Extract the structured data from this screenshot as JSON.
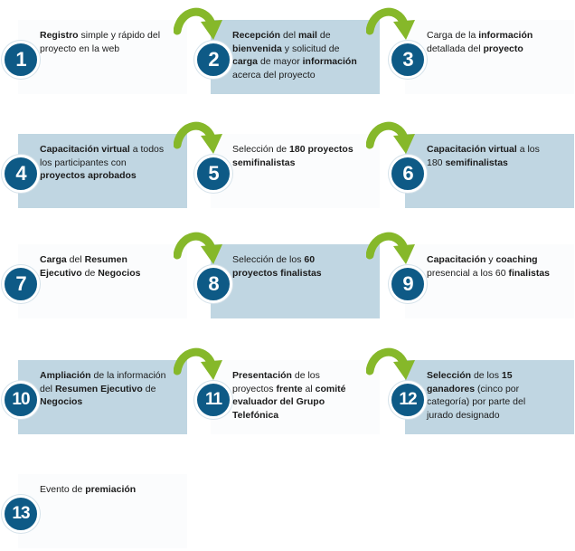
{
  "colors": {
    "box_fill": "#c0d6e2",
    "badge_fill": "#0e5a86",
    "arrow_fill": "#86b82a",
    "text": "#1b1b1b"
  },
  "steps": [
    {
      "number": "1",
      "icon": "step-number-badge",
      "shaded": false,
      "segments": [
        {
          "t": "Registro",
          "b": true
        },
        {
          "t": " simple y rápido del proyecto en la web",
          "b": false
        }
      ]
    },
    {
      "number": "2",
      "icon": "step-number-badge",
      "shaded": true,
      "segments": [
        {
          "t": "Recepción",
          "b": true
        },
        {
          "t": " del ",
          "b": false
        },
        {
          "t": "mail",
          "b": true
        },
        {
          "t": " de ",
          "b": false
        },
        {
          "t": "bienvenida",
          "b": true
        },
        {
          "t": " y solicitud de ",
          "b": false
        },
        {
          "t": "carga",
          "b": true
        },
        {
          "t": " de mayor ",
          "b": false
        },
        {
          "t": "información",
          "b": true
        },
        {
          "t": " acerca del proyecto",
          "b": false
        }
      ]
    },
    {
      "number": "3",
      "icon": "step-number-badge",
      "shaded": false,
      "segments": [
        {
          "t": "Carga de la ",
          "b": false
        },
        {
          "t": "información",
          "b": true
        },
        {
          "t": " detallada del ",
          "b": false
        },
        {
          "t": "proyecto",
          "b": true
        }
      ]
    },
    {
      "number": "4",
      "icon": "step-number-badge",
      "shaded": true,
      "segments": [
        {
          "t": "Capacitación virtual",
          "b": true
        },
        {
          "t": " a todos los participantes con ",
          "b": false
        },
        {
          "t": "proyectos aprobados",
          "b": true
        }
      ]
    },
    {
      "number": "5",
      "icon": "step-number-badge",
      "shaded": false,
      "segments": [
        {
          "t": "Selección de ",
          "b": false
        },
        {
          "t": "180 proyectos semifinalistas",
          "b": true
        }
      ]
    },
    {
      "number": "6",
      "icon": "step-number-badge",
      "shaded": true,
      "segments": [
        {
          "t": "Capacitación virtual",
          "b": true
        },
        {
          "t": " a los 180 ",
          "b": false
        },
        {
          "t": "semifinalistas",
          "b": true
        }
      ]
    },
    {
      "number": "7",
      "icon": "step-number-badge",
      "shaded": false,
      "segments": [
        {
          "t": "Carga",
          "b": true
        },
        {
          "t": " del ",
          "b": false
        },
        {
          "t": "Resumen Ejecutivo",
          "b": true
        },
        {
          "t": " de ",
          "b": false
        },
        {
          "t": "Negocios",
          "b": true
        }
      ]
    },
    {
      "number": "8",
      "icon": "step-number-badge",
      "shaded": true,
      "segments": [
        {
          "t": "Selección de los ",
          "b": false
        },
        {
          "t": "60 proyectos finalistas",
          "b": true
        }
      ]
    },
    {
      "number": "9",
      "icon": "step-number-badge",
      "shaded": false,
      "segments": [
        {
          "t": "Capacitación",
          "b": true
        },
        {
          "t": " y ",
          "b": false
        },
        {
          "t": "coaching",
          "b": true
        },
        {
          "t": " presencial a los 60 ",
          "b": false
        },
        {
          "t": "finalistas",
          "b": true
        }
      ]
    },
    {
      "number": "10",
      "icon": "step-number-badge",
      "shaded": true,
      "segments": [
        {
          "t": "Ampliación",
          "b": true
        },
        {
          "t": " de la información del ",
          "b": false
        },
        {
          "t": "Resumen Ejecutivo",
          "b": true
        },
        {
          "t": " de ",
          "b": false
        },
        {
          "t": "Negocios",
          "b": true
        }
      ]
    },
    {
      "number": "11",
      "icon": "step-number-badge",
      "shaded": false,
      "segments": [
        {
          "t": "Presentación",
          "b": true
        },
        {
          "t": " de los proyectos ",
          "b": false
        },
        {
          "t": "frente",
          "b": true
        },
        {
          "t": " al ",
          "b": false
        },
        {
          "t": "comité evaluador del Grupo Telefónica",
          "b": true
        }
      ]
    },
    {
      "number": "12",
      "icon": "step-number-badge",
      "shaded": true,
      "segments": [
        {
          "t": "Selección",
          "b": true
        },
        {
          "t": " de los ",
          "b": false
        },
        {
          "t": "15 ganadores",
          "b": true
        },
        {
          "t": " (cinco por categoría) por parte del jurado designado",
          "b": false
        }
      ]
    },
    {
      "number": "13",
      "icon": "step-number-badge",
      "shaded": false,
      "segments": [
        {
          "t": "Evento de ",
          "b": false
        },
        {
          "t": "premiación",
          "b": true
        }
      ]
    }
  ],
  "arrows": [
    {
      "from": "1",
      "to": "2",
      "icon": "curved-arrow-icon"
    },
    {
      "from": "2",
      "to": "3",
      "icon": "curved-arrow-icon"
    },
    {
      "from": "4",
      "to": "5",
      "icon": "curved-arrow-icon"
    },
    {
      "from": "5",
      "to": "6",
      "icon": "curved-arrow-icon"
    },
    {
      "from": "7",
      "to": "8",
      "icon": "curved-arrow-icon"
    },
    {
      "from": "8",
      "to": "9",
      "icon": "curved-arrow-icon"
    },
    {
      "from": "10",
      "to": "11",
      "icon": "curved-arrow-icon"
    },
    {
      "from": "11",
      "to": "12",
      "icon": "curved-arrow-icon"
    }
  ]
}
